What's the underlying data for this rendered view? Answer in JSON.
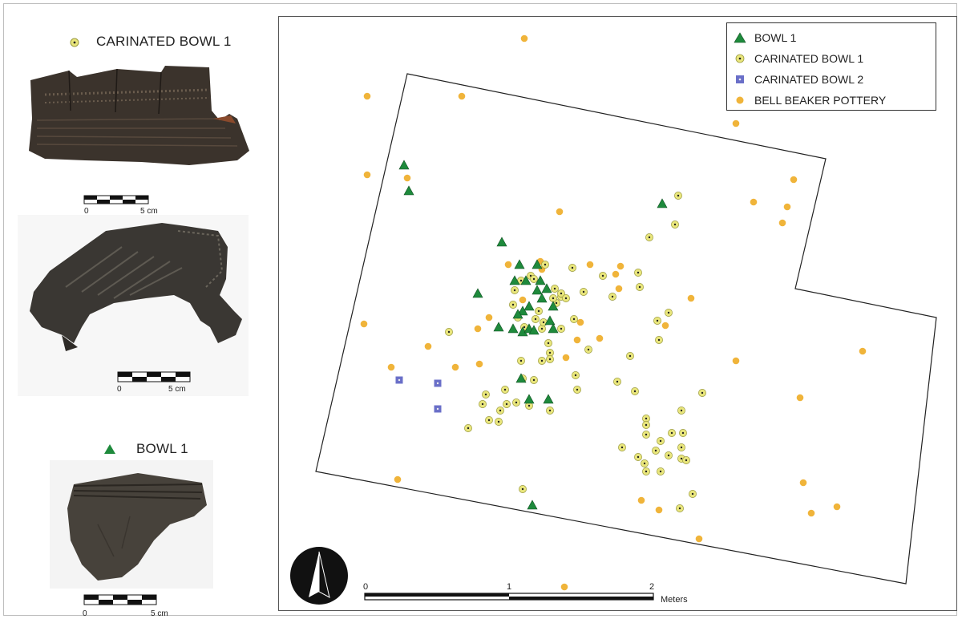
{
  "photo_panel": {
    "carinated_label": "CARINATED BOWL 1",
    "bowl_label": "BOWL 1",
    "scale_0": "0",
    "scale_5cm": "5 cm"
  },
  "legend": {
    "items": [
      {
        "label": "BOWL 1",
        "symbol": "triangle",
        "color": "#1e8a3c"
      },
      {
        "label": "CARINATED BOWL 1",
        "symbol": "dotted-circle",
        "color": "#e8e27a"
      },
      {
        "label": "CARINATED BOWL 2",
        "symbol": "square",
        "color": "#6a6fc8"
      },
      {
        "label": "BELL BEAKER POTTERY",
        "symbol": "circle",
        "color": "#f0b43a"
      }
    ]
  },
  "scale_bar": {
    "ticks": [
      "0",
      "1",
      "2"
    ],
    "unit": "Meters"
  },
  "colors": {
    "bowl1": "#1e8a3c",
    "carinated1_fill": "#e9e67c",
    "carinated2": "#6a6fc8",
    "bell_beaker": "#f0b43a"
  }
}
